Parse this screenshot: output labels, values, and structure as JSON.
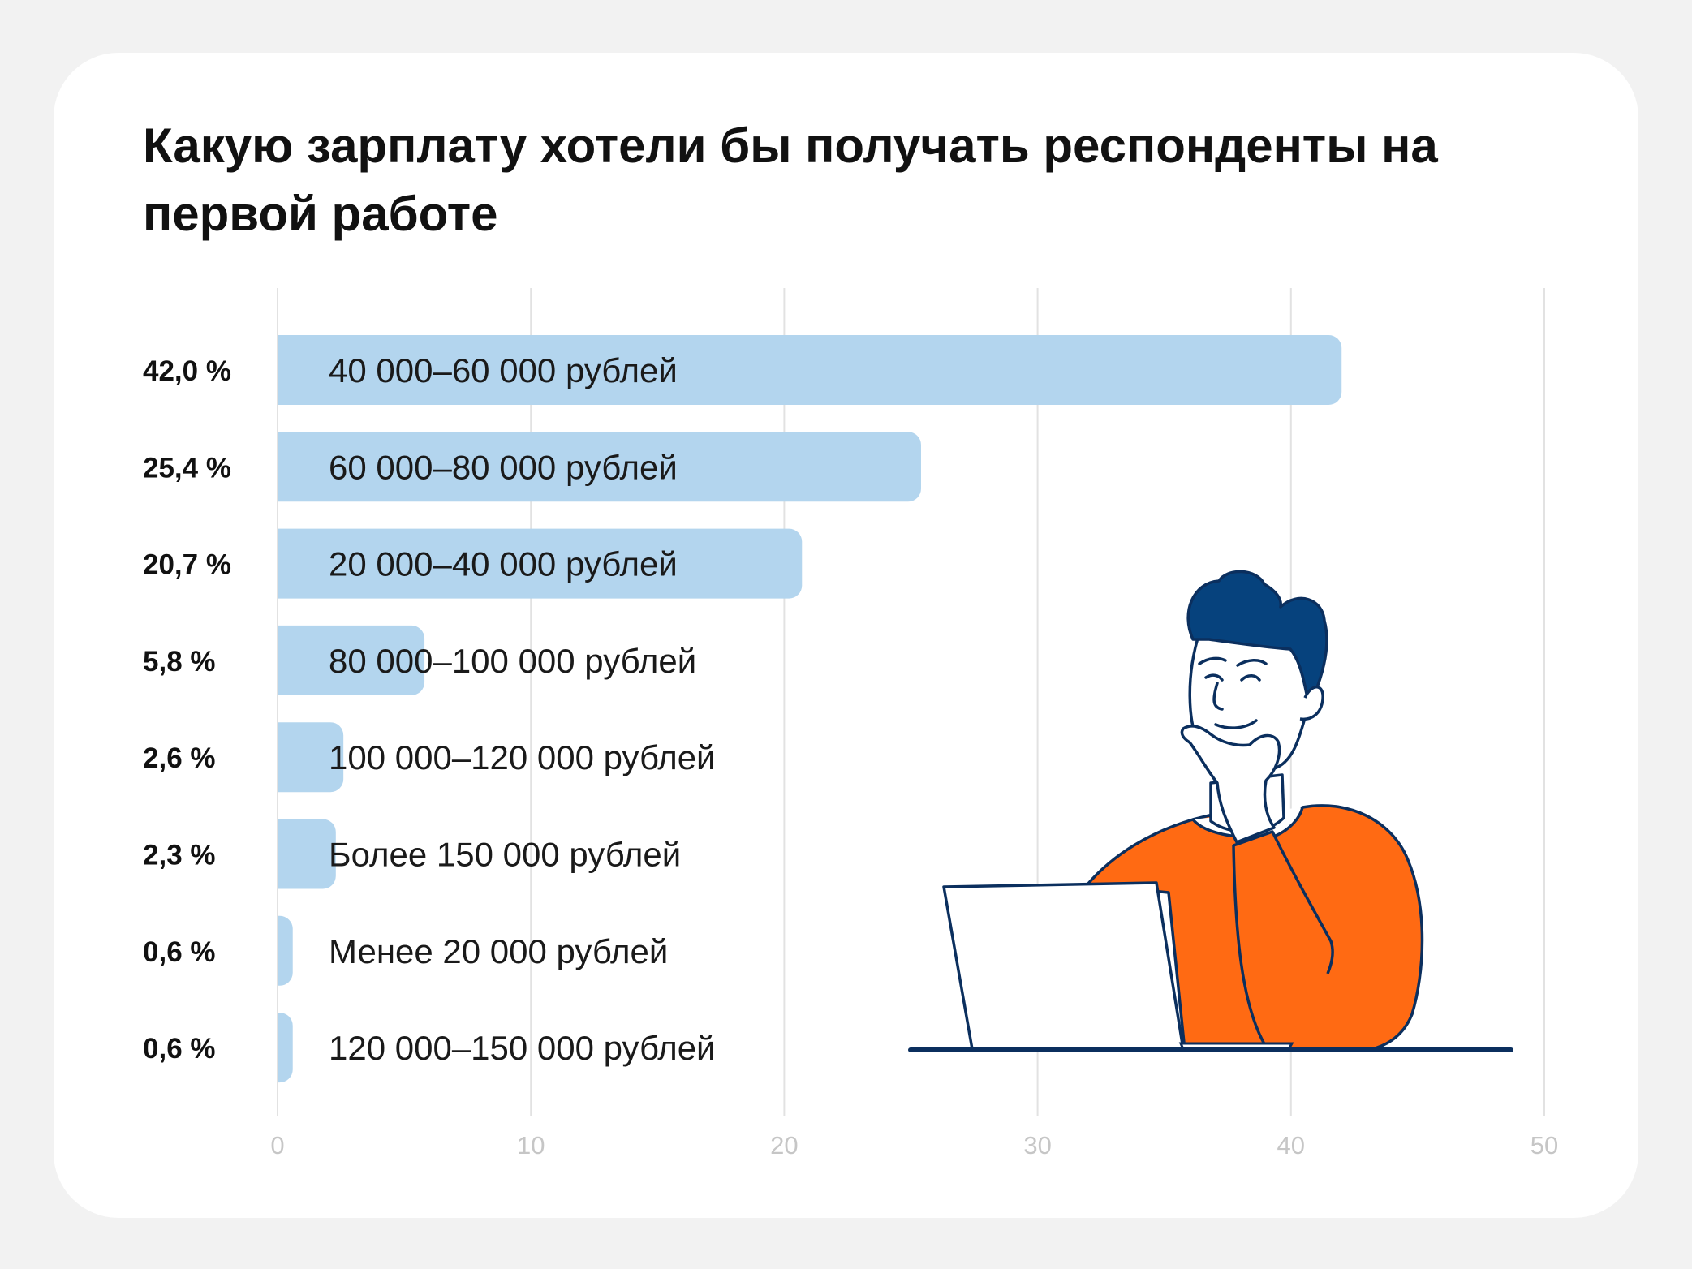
{
  "title": "Какую зарплату хотели бы получать респонденты на первой работе",
  "colors": {
    "bar": "#b3d5ee",
    "grid": "#e2e2e2",
    "shirt": "#ff6a13",
    "hair": "#06427d",
    "outline": "#0b2f5e",
    "card": "#ffffff",
    "background": "#f2f2f2"
  },
  "chart_data": {
    "type": "bar",
    "orientation": "horizontal",
    "title": "Какую зарплату хотели бы получать респонденты на первой работе",
    "xlabel": "",
    "ylabel": "",
    "xlim": [
      0,
      50
    ],
    "xticks": [
      0,
      10,
      20,
      30,
      40,
      50
    ],
    "grid": true,
    "categories": [
      "40 000–60 000 рублей",
      "60 000–80 000 рублей",
      "20 000–40 000 рублей",
      "80 000–100 000 рублей",
      "100 000–120 000 рублей",
      "Более 150 000 рублей",
      "Менее 20 000 рублей",
      "120 000–150 000 рублей"
    ],
    "values": [
      42.0,
      25.4,
      20.7,
      5.8,
      2.6,
      2.3,
      0.6,
      0.6
    ],
    "value_labels": [
      "42,0 %",
      "25,4 %",
      "20,7 %",
      "5,8 %",
      "2,6 %",
      "2,3 %",
      "0,6 %",
      "0,6 %"
    ]
  }
}
